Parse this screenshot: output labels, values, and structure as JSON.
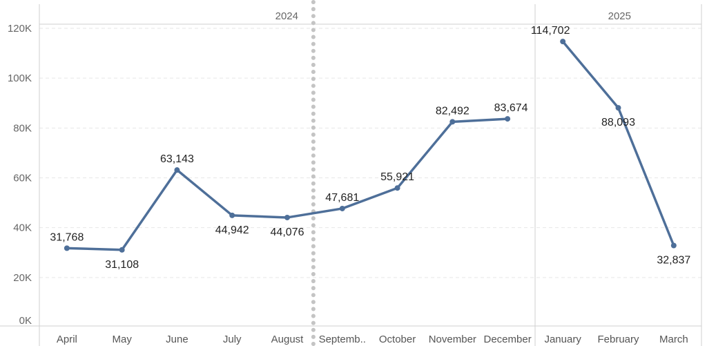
{
  "chart_data": {
    "type": "line",
    "title": "",
    "xlabel": "",
    "ylabel": "",
    "ylim": [
      0,
      120000
    ],
    "y_ticks": [
      0,
      20000,
      40000,
      60000,
      80000,
      100000,
      120000
    ],
    "y_tick_labels": [
      "0K",
      "20K",
      "40K",
      "60K",
      "80K",
      "100K",
      "120K"
    ],
    "grid": true,
    "color": "#4e6f99",
    "panels": [
      {
        "year": "2024",
        "categories": [
          "April",
          "May",
          "June",
          "July",
          "August",
          "Septemb..",
          "October",
          "November",
          "December"
        ],
        "values": [
          31768,
          31108,
          63143,
          44942,
          44076,
          47681,
          55921,
          82492,
          83674
        ],
        "labels": [
          "31,768",
          "31,108",
          "63,143",
          "44,942",
          "44,076",
          "47,681",
          "55,921",
          "82,492",
          "83,674"
        ]
      },
      {
        "year": "2025",
        "categories": [
          "January",
          "February",
          "March"
        ],
        "values": [
          114702,
          88093,
          32837
        ],
        "labels": [
          "114,702",
          "88,093",
          "32,837"
        ]
      }
    ],
    "annotations": [
      {
        "type": "dotted-vertical-reference-line",
        "between": [
          "August",
          "Septemb.."
        ]
      }
    ]
  }
}
